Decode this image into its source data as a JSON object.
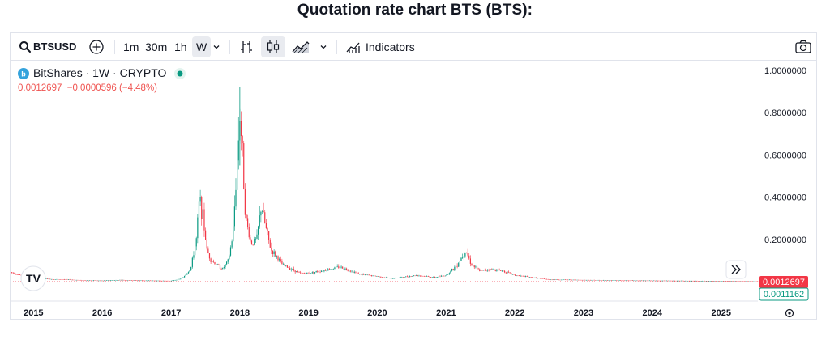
{
  "page": {
    "title": "Quotation rate chart BTS (BTS):"
  },
  "toolbar": {
    "symbol": "BTSUSD",
    "intervals": [
      "1m",
      "30m",
      "1h",
      "W"
    ],
    "active_interval": "W",
    "indicators_label": "Indicators"
  },
  "legend": {
    "title": "BitShares · 1W · CRYPTO",
    "values": "0.0012697  −0.0000596 (−4.48%)",
    "status_color": "#089981"
  },
  "colors": {
    "up": "#089981",
    "down": "#f23645",
    "accent": "#2962ff"
  },
  "chart_data": {
    "type": "candlestick",
    "title": "",
    "xlabel": "",
    "ylabel": "",
    "x_ticks": [
      "2015",
      "2016",
      "2017",
      "2018",
      "2019",
      "2020",
      "2021",
      "2022",
      "2023",
      "2024",
      "2025"
    ],
    "y_ticks": [
      "0.2000000",
      "0.4000000",
      "0.6000000",
      "0.8000000",
      "1.0000000"
    ],
    "ylim": [
      0,
      1.0
    ],
    "x_range": [
      "2014-09-01",
      "2025-07-15"
    ],
    "last_price": "0.0012697",
    "second_price": "0.0011162",
    "series": [
      {
        "points": [
          [
            "2014-09-01",
            0.045
          ],
          [
            "2014-11-01",
            0.028
          ],
          [
            "2015-01-01",
            0.018
          ],
          [
            "2015-04-01",
            0.012
          ],
          [
            "2015-07-01",
            0.01
          ],
          [
            "2015-10-01",
            0.006
          ],
          [
            "2016-01-01",
            0.005
          ],
          [
            "2016-04-01",
            0.008
          ],
          [
            "2016-07-01",
            0.006
          ],
          [
            "2016-10-01",
            0.005
          ],
          [
            "2017-01-01",
            0.004
          ],
          [
            "2017-03-01",
            0.015
          ],
          [
            "2017-04-15",
            0.06
          ],
          [
            "2017-05-15",
            0.2
          ],
          [
            "2017-06-01",
            0.4
          ],
          [
            "2017-06-20",
            0.3
          ],
          [
            "2017-07-10",
            0.15
          ],
          [
            "2017-08-01",
            0.1
          ],
          [
            "2017-09-01",
            0.08
          ],
          [
            "2017-10-01",
            0.06
          ],
          [
            "2017-11-01",
            0.1
          ],
          [
            "2017-11-25",
            0.22
          ],
          [
            "2017-12-15",
            0.52
          ],
          [
            "2018-01-01",
            0.8
          ],
          [
            "2018-01-15",
            0.6
          ],
          [
            "2018-02-01",
            0.3
          ],
          [
            "2018-03-01",
            0.18
          ],
          [
            "2018-04-01",
            0.2
          ],
          [
            "2018-04-25",
            0.36
          ],
          [
            "2018-05-20",
            0.25
          ],
          [
            "2018-06-15",
            0.15
          ],
          [
            "2018-07-15",
            0.12
          ],
          [
            "2018-08-15",
            0.08
          ],
          [
            "2018-10-01",
            0.06
          ],
          [
            "2018-11-15",
            0.04
          ],
          [
            "2019-01-01",
            0.04
          ],
          [
            "2019-04-01",
            0.055
          ],
          [
            "2019-06-15",
            0.07
          ],
          [
            "2019-08-01",
            0.055
          ],
          [
            "2019-10-01",
            0.035
          ],
          [
            "2020-01-01",
            0.025
          ],
          [
            "2020-03-15",
            0.015
          ],
          [
            "2020-05-01",
            0.02
          ],
          [
            "2020-08-01",
            0.03
          ],
          [
            "2020-11-01",
            0.02
          ],
          [
            "2021-01-01",
            0.03
          ],
          [
            "2021-03-01",
            0.08
          ],
          [
            "2021-04-15",
            0.15
          ],
          [
            "2021-05-15",
            0.08
          ],
          [
            "2021-07-01",
            0.05
          ],
          [
            "2021-09-01",
            0.06
          ],
          [
            "2021-11-01",
            0.05
          ],
          [
            "2022-01-01",
            0.03
          ],
          [
            "2022-04-01",
            0.02
          ],
          [
            "2022-07-01",
            0.01
          ],
          [
            "2023-01-01",
            0.008
          ],
          [
            "2023-07-01",
            0.006
          ],
          [
            "2024-01-01",
            0.005
          ],
          [
            "2024-07-01",
            0.004
          ],
          [
            "2025-01-01",
            0.003
          ],
          [
            "2025-07-15",
            0.0013
          ]
        ]
      }
    ]
  }
}
